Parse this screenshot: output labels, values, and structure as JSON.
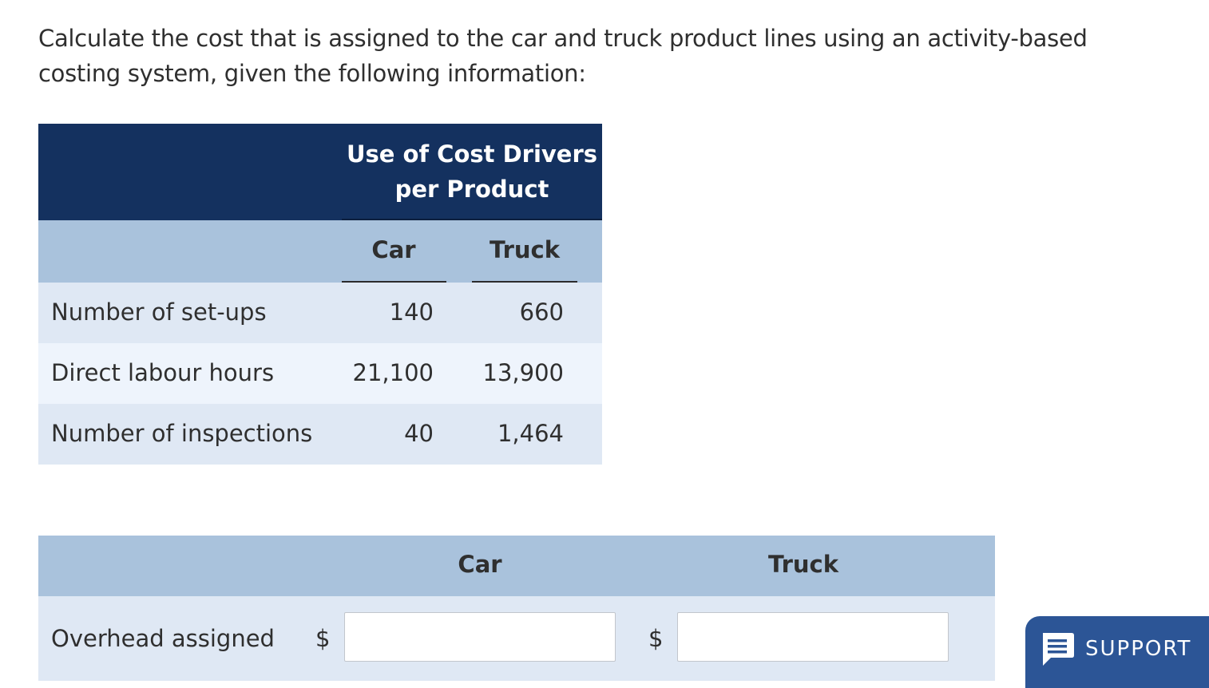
{
  "question": {
    "text": "Calculate the cost that is assigned to the car and truck product lines using an activity-based costing system, given the following information:"
  },
  "drivers_table": {
    "header_title_line1": "Use of Cost Drivers",
    "header_title_line2": "per Product",
    "columns": [
      "Car",
      "Truck"
    ],
    "rows": [
      {
        "label": "Number of set-ups",
        "car": "140",
        "truck": "660"
      },
      {
        "label": "Direct labour hours",
        "car": "21,100",
        "truck": "13,900"
      },
      {
        "label": "Number of inspections",
        "car": "40",
        "truck": "1,464"
      }
    ]
  },
  "answer_table": {
    "columns": [
      "Car",
      "Truck"
    ],
    "row_label": "Overhead assigned",
    "currency_symbol": "$",
    "car_value": "",
    "truck_value": ""
  },
  "support_button": {
    "label": "SUPPORT",
    "icon": "chat-bubble-icon",
    "color": "#2c5596"
  },
  "colors": {
    "header_dark": "#14315f",
    "header_light": "#a9c2dc",
    "row_shade": "#dfe8f4",
    "row_light": "#eef4fc"
  }
}
